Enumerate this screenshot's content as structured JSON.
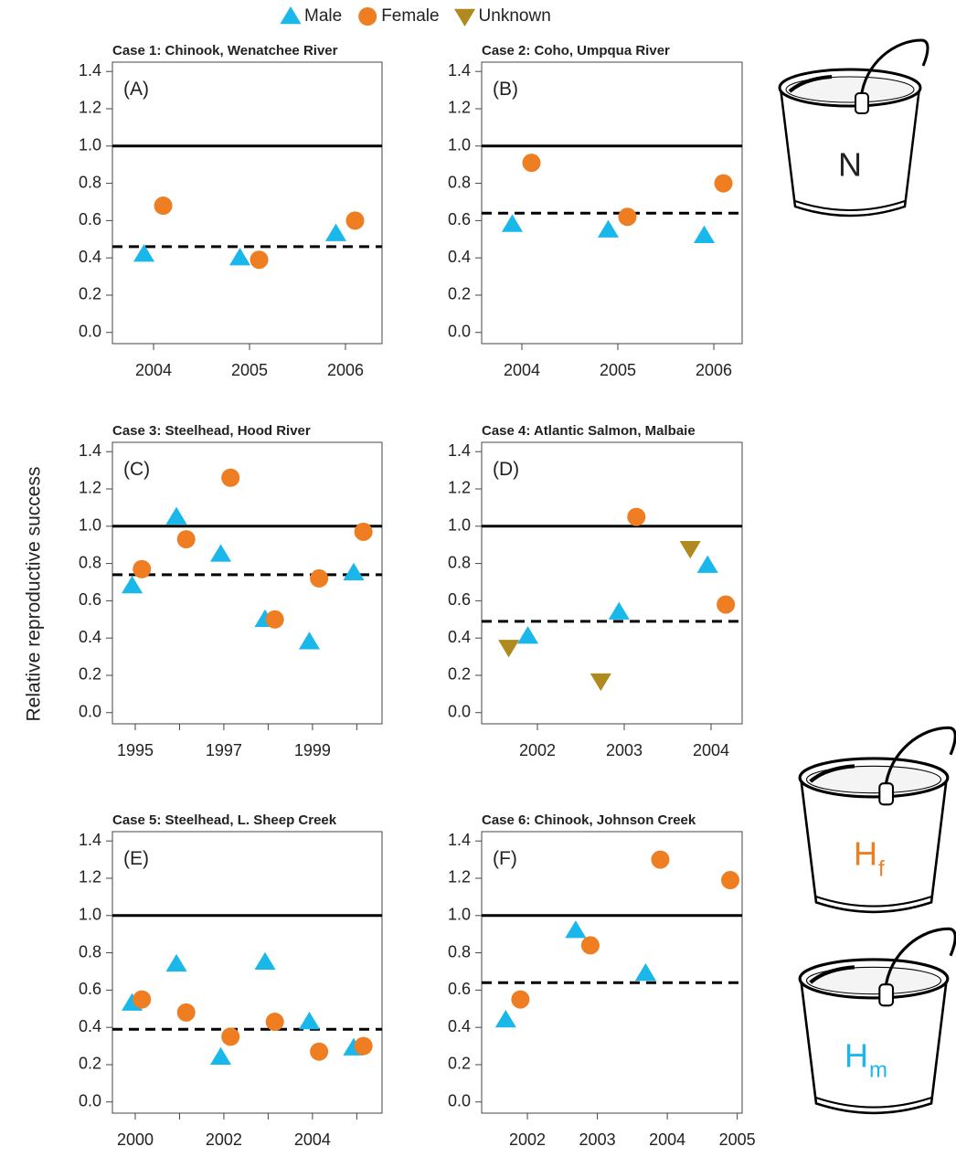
{
  "ylabel": "Relative reproductive success",
  "buckets": [
    {
      "label": "N"
    },
    {
      "label": "H",
      "subscript": "f",
      "color": "#ef7d22"
    },
    {
      "label": "H",
      "subscript": "m",
      "color": "#1ab8ea"
    }
  ],
  "chart_data": [
    {
      "type": "scatter",
      "title": "Case 1: Chinook, Wenatchee River",
      "panel_label": "(A)",
      "xlim": [
        2003.571,
        2006.381
      ],
      "ylim": [
        -0.06,
        1.45
      ],
      "xticks": [
        2004,
        2005,
        2006
      ],
      "yticks": [
        {
          "value": 0,
          "label": "0.0"
        },
        0.2,
        0.4,
        0.6,
        0.8,
        {
          "value": 1,
          "label": "1.0"
        },
        1.2,
        1.4
      ],
      "reference_line": 1,
      "mean_line": 0.46,
      "series": [
        {
          "color": "#1ab8ea",
          "marker": "triangle-up",
          "x": [
            2003.9,
            2004.9,
            2005.9
          ],
          "values": [
            0.42,
            0.4,
            0.53
          ]
        },
        {
          "color": "#ef7d22",
          "marker": "circle",
          "x": [
            2004.1,
            2005.1,
            2006.1
          ],
          "values": [
            0.68,
            0.39,
            0.6
          ]
        }
      ]
    },
    {
      "type": "scatter",
      "title": "Case 2: Coho, Umpqua River",
      "panel_label": "(B)",
      "xlim": [
        2003.581,
        2006.295
      ],
      "ylim": [
        -0.06,
        1.45
      ],
      "xticks": [
        2004,
        2005,
        2006
      ],
      "yticks": [
        {
          "value": 0,
          "label": "0.0"
        },
        0.2,
        0.4,
        0.6,
        0.8,
        {
          "value": 1,
          "label": "1.0"
        },
        1.2,
        1.4
      ],
      "reference_line": 1,
      "mean_line": 0.64,
      "series": [
        {
          "color": "#1ab8ea",
          "marker": "triangle-up",
          "x": [
            2003.9,
            2004.9,
            2005.9
          ],
          "values": [
            0.58,
            0.55,
            0.52
          ]
        },
        {
          "color": "#ef7d22",
          "marker": "circle",
          "x": [
            2004.1,
            2005.1,
            2006.1
          ],
          "values": [
            0.91,
            0.62,
            0.8
          ]
        }
      ]
    },
    {
      "type": "scatter",
      "title": "Case 3: Steelhead, Hood River",
      "panel_label": "(C)",
      "xlim": [
        1994.485,
        2000.57
      ],
      "ylim": [
        -0.06,
        1.45
      ],
      "xticks": [
        1995,
        1997,
        1999
      ],
      "minor_xticks": [
        1996,
        1998,
        2000
      ],
      "yticks": [
        {
          "value": 0,
          "label": "0.0"
        },
        0.2,
        0.4,
        0.6,
        0.8,
        {
          "value": 1,
          "label": "1.0"
        },
        1.2,
        1.4
      ],
      "reference_line": 1,
      "mean_line": 0.74,
      "series": [
        {
          "color": "#1ab8ea",
          "marker": "triangle-up",
          "x": [
            1994.93,
            1995.93,
            1996.93,
            1997.93,
            1998.93,
            1999.93
          ],
          "values": [
            0.68,
            1.05,
            0.85,
            0.5,
            0.38,
            0.75
          ]
        },
        {
          "color": "#ef7d22",
          "marker": "circle",
          "x": [
            1995.15,
            1996.15,
            1997.15,
            1998.15,
            1999.15,
            2000.15
          ],
          "values": [
            0.77,
            0.93,
            1.26,
            0.5,
            0.72,
            0.97
          ]
        }
      ]
    },
    {
      "type": "scatter",
      "title": "Case 4: Atlantic Salmon, Malbaie",
      "panel_label": "(D)",
      "xlim": [
        2001.358,
        2004.358
      ],
      "ylim": [
        -0.06,
        1.45
      ],
      "xticks": [
        2002,
        2003,
        2004
      ],
      "yticks": [
        {
          "value": 0,
          "label": "0.0"
        },
        0.2,
        0.4,
        0.6,
        0.8,
        {
          "value": 1,
          "label": "1.0"
        },
        1.2,
        1.4
      ],
      "reference_line": 1,
      "mean_line": 0.49,
      "series": [
        {
          "name": "Male",
          "color": "#1ab8ea",
          "marker": "triangle-up",
          "x": [
            2001.89,
            2002.94,
            2003.96
          ],
          "values": [
            0.41,
            0.54,
            0.79
          ]
        },
        {
          "name": "Female",
          "color": "#ef7d22",
          "marker": "circle",
          "x": [
            2003.14,
            2004.17
          ],
          "values": [
            1.05,
            0.58
          ]
        },
        {
          "name": "Unknown",
          "color": "#b08a1e",
          "marker": "triangle-down",
          "x": [
            2001.67,
            2002.73,
            2003.76
          ],
          "values": [
            0.35,
            0.17,
            0.88
          ]
        }
      ]
    },
    {
      "type": "scatter",
      "title": "Case 5: Steelhead, L. Sheep Creek",
      "panel_label": "(E)",
      "xlim": [
        1999.485,
        2005.57
      ],
      "ylim": [
        -0.06,
        1.45
      ],
      "xticks": [
        2000,
        2002,
        2004
      ],
      "minor_xticks": [
        2001,
        2003,
        2005
      ],
      "yticks": [
        {
          "value": 0,
          "label": "0.0"
        },
        0.2,
        0.4,
        0.6,
        0.8,
        {
          "value": 1,
          "label": "1.0"
        },
        1.2,
        1.4
      ],
      "reference_line": 1,
      "mean_line": 0.39,
      "series": [
        {
          "color": "#1ab8ea",
          "marker": "triangle-up",
          "x": [
            1999.93,
            2000.93,
            2001.93,
            2002.93,
            2003.93,
            2004.93
          ],
          "values": [
            0.53,
            0.74,
            0.24,
            0.75,
            0.43,
            0.29
          ]
        },
        {
          "color": "#ef7d22",
          "marker": "circle",
          "x": [
            2000.15,
            2001.15,
            2002.15,
            2003.15,
            2004.15,
            2005.15
          ],
          "values": [
            0.55,
            0.48,
            0.35,
            0.43,
            0.27,
            0.3
          ]
        }
      ]
    },
    {
      "type": "scatter",
      "title": "Case 6: Chinook, Johnson Creek",
      "panel_label": "(F)",
      "xlim": [
        2001.346,
        2005.07
      ],
      "ylim": [
        -0.06,
        1.45
      ],
      "xticks": [
        2002,
        2003,
        2004,
        2005
      ],
      "yticks": [
        {
          "value": 0,
          "label": "0.0"
        },
        0.2,
        0.4,
        0.6,
        0.8,
        {
          "value": 1,
          "label": "1.0"
        },
        1.2,
        1.4
      ],
      "reference_line": 1,
      "mean_line": 0.64,
      "series": [
        {
          "color": "#1ab8ea",
          "marker": "triangle-up",
          "x": [
            2001.69,
            2002.69,
            2003.69
          ],
          "values": [
            0.44,
            0.92,
            0.69
          ]
        },
        {
          "color": "#ef7d22",
          "marker": "circle",
          "x": [
            2001.9,
            2002.9,
            2003.9,
            2004.9
          ],
          "values": [
            0.55,
            0.84,
            1.3,
            1.19
          ]
        }
      ]
    }
  ]
}
